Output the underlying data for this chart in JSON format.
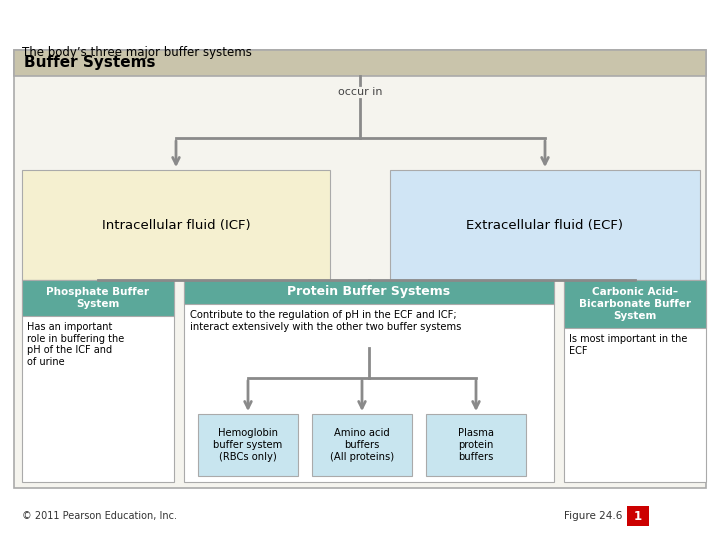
{
  "title": "The body’s three major buffer systems",
  "main_box_label": "Buffer Systems",
  "occur_in": "occur in",
  "icf_label": "Intracellular fluid (ICF)",
  "ecf_label": "Extracellular fluid (ECF)",
  "phosphate_title": "Phosphate Buffer\nSystem",
  "phosphate_body": "Has an important\nrole in buffering the\npH of the ICF and\nof urine",
  "protein_title": "Protein Buffer Systems",
  "protein_body": "Contribute to the regulation of pH in the ECF and ICF;\ninteract extensively with the other two buffer systems",
  "carbonic_title": "Carbonic Acid–\nBicarbonate Buffer\nSystem",
  "carbonic_body": "Is most important in the\nECF",
  "hemo_label": "Hemoglobin\nbuffer system\n(RBCs only)",
  "amino_label": "Amino acid\nbuffers\n(All proteins)",
  "plasma_label": "Plasma\nprotein\nbuffers",
  "footer_left": "© 2011 Pearson Education, Inc.",
  "footer_right": "Figure 24.6",
  "page_num": "1",
  "bg_color": "#ffffff",
  "main_header_bg": "#c9c4ab",
  "main_inner_bg": "#f5f4ee",
  "icf_bg": "#f5f0d0",
  "ecf_bg": "#d0e5f5",
  "teal_bg": "#5ba89a",
  "white_bg": "#ffffff",
  "sub_box_bg": "#c8e5ef",
  "arrow_color": "#8a8a8a",
  "border_color": "#aaaaaa",
  "page_num_bg": "#cc0000",
  "page_num_color": "#ffffff"
}
